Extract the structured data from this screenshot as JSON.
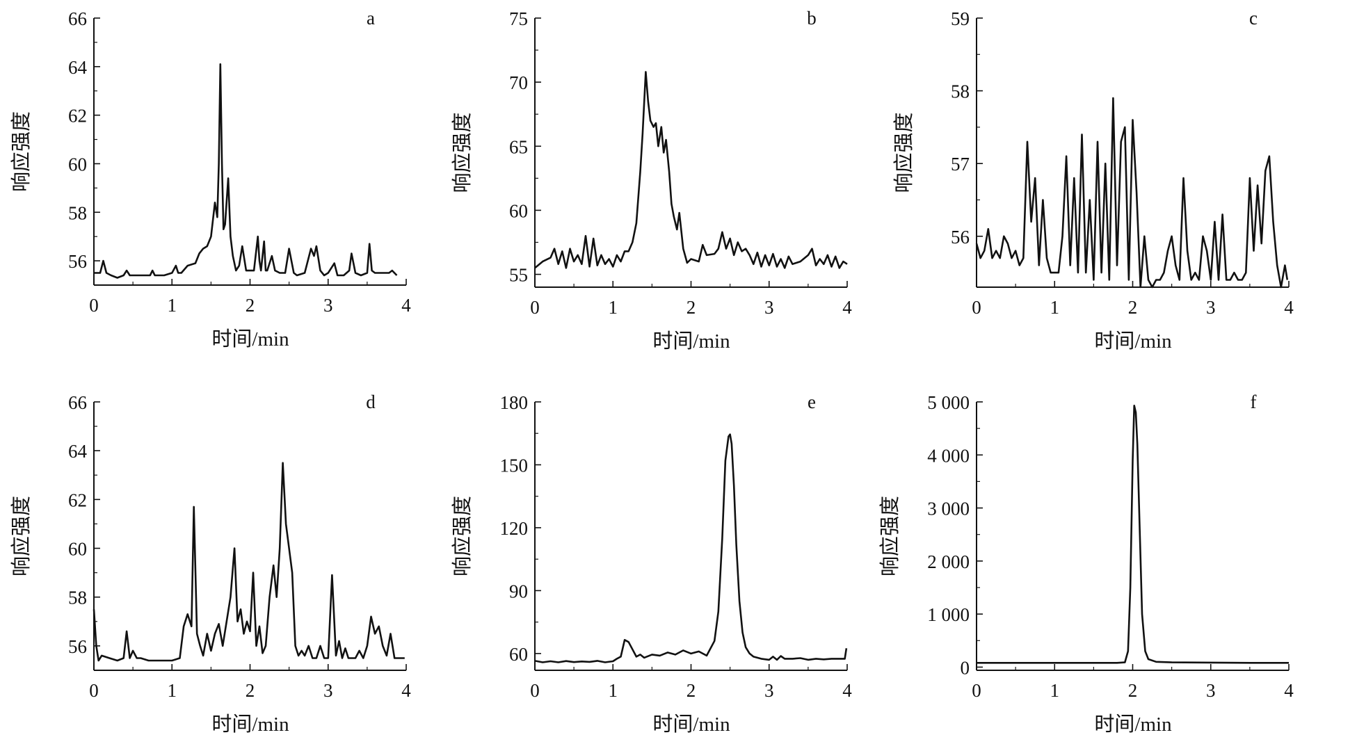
{
  "figure": {
    "xlabel": "时间/min",
    "ylabel": "响应强度",
    "line_color": "#111111"
  },
  "chart_data": [
    {
      "type": "line",
      "panel_label": "a",
      "xlabel": "时间/min",
      "ylabel": "响应强度",
      "xlim": [
        0,
        4
      ],
      "ylim": [
        55,
        66
      ],
      "xticks": [
        "0",
        "1",
        "2",
        "3",
        "4"
      ],
      "xtick_values": [
        0,
        1,
        2,
        3,
        4
      ],
      "yticks": [
        "56",
        "58",
        "60",
        "62",
        "64",
        "66"
      ],
      "ytick_values": [
        56,
        58,
        60,
        62,
        64,
        66
      ],
      "series": [
        {
          "x": [
            0,
            0.08,
            0.12,
            0.16,
            0.22,
            0.3,
            0.38,
            0.42,
            0.46,
            0.55,
            0.65,
            0.72,
            0.75,
            0.78,
            0.9,
            1.0,
            1.05,
            1.08,
            1.12,
            1.2,
            1.3,
            1.35,
            1.4,
            1.45,
            1.5,
            1.55,
            1.58,
            1.6,
            1.62,
            1.64,
            1.66,
            1.68,
            1.72,
            1.75,
            1.78,
            1.82,
            1.86,
            1.9,
            1.95,
            2.0,
            2.05,
            2.1,
            2.12,
            2.14,
            2.18,
            2.2,
            2.22,
            2.28,
            2.32,
            2.38,
            2.45,
            2.5,
            2.53,
            2.56,
            2.6,
            2.7,
            2.78,
            2.82,
            2.85,
            2.9,
            2.95,
            3.0,
            3.08,
            3.12,
            3.2,
            3.27,
            3.3,
            3.35,
            3.42,
            3.5,
            3.53,
            3.56,
            3.6,
            3.7,
            3.78,
            3.82,
            3.88
          ],
          "y": [
            55.5,
            55.5,
            56.0,
            55.5,
            55.4,
            55.3,
            55.4,
            55.6,
            55.4,
            55.4,
            55.4,
            55.4,
            55.6,
            55.4,
            55.4,
            55.5,
            55.8,
            55.5,
            55.5,
            55.8,
            55.9,
            56.3,
            56.5,
            56.6,
            57.0,
            58.4,
            57.8,
            60.0,
            64.1,
            60.0,
            57.3,
            57.5,
            59.4,
            57.0,
            56.2,
            55.6,
            55.8,
            56.6,
            55.6,
            55.6,
            55.6,
            57.0,
            56.0,
            55.6,
            56.8,
            55.6,
            55.6,
            56.2,
            55.6,
            55.5,
            55.5,
            56.5,
            56.0,
            55.5,
            55.4,
            55.5,
            56.5,
            56.2,
            56.6,
            55.6,
            55.4,
            55.5,
            55.9,
            55.4,
            55.4,
            55.6,
            56.3,
            55.5,
            55.4,
            55.5,
            56.7,
            55.6,
            55.5,
            55.5,
            55.5,
            55.6,
            55.4
          ]
        }
      ]
    },
    {
      "type": "line",
      "panel_label": "b",
      "xlabel": "时间/min",
      "ylabel": "响应强度",
      "xlim": [
        0,
        4
      ],
      "ylim": [
        54,
        75
      ],
      "xticks": [
        "0",
        "1",
        "2",
        "3",
        "4"
      ],
      "xtick_values": [
        0,
        1,
        2,
        3,
        4
      ],
      "yticks": [
        "55",
        "60",
        "65",
        "70",
        "75"
      ],
      "ytick_values": [
        55,
        60,
        65,
        70,
        75
      ],
      "series": [
        {
          "x": [
            0,
            0.1,
            0.2,
            0.25,
            0.3,
            0.35,
            0.4,
            0.45,
            0.5,
            0.55,
            0.6,
            0.65,
            0.7,
            0.75,
            0.8,
            0.85,
            0.9,
            0.95,
            1.0,
            1.05,
            1.1,
            1.15,
            1.2,
            1.25,
            1.3,
            1.35,
            1.38,
            1.42,
            1.45,
            1.48,
            1.52,
            1.55,
            1.58,
            1.62,
            1.65,
            1.68,
            1.72,
            1.75,
            1.78,
            1.82,
            1.85,
            1.9,
            1.95,
            2.0,
            2.1,
            2.15,
            2.2,
            2.3,
            2.35,
            2.4,
            2.45,
            2.5,
            2.55,
            2.6,
            2.65,
            2.7,
            2.75,
            2.8,
            2.85,
            2.9,
            2.95,
            3.0,
            3.05,
            3.1,
            3.15,
            3.2,
            3.25,
            3.3,
            3.4,
            3.5,
            3.55,
            3.6,
            3.65,
            3.7,
            3.75,
            3.8,
            3.85,
            3.9,
            3.95,
            4.0
          ],
          "y": [
            55.5,
            56.0,
            56.3,
            57.0,
            55.8,
            56.8,
            55.5,
            57.0,
            56.0,
            56.5,
            55.8,
            58.0,
            55.6,
            57.8,
            55.7,
            56.5,
            55.8,
            56.2,
            55.6,
            56.5,
            56.0,
            56.8,
            56.8,
            57.5,
            59.0,
            63.0,
            66.0,
            70.8,
            68.5,
            67.0,
            66.5,
            66.8,
            65.0,
            66.5,
            64.5,
            65.5,
            63.0,
            60.5,
            59.5,
            58.5,
            59.8,
            57.0,
            55.9,
            56.2,
            56.0,
            57.3,
            56.5,
            56.6,
            57.0,
            58.3,
            57.0,
            57.8,
            56.5,
            57.5,
            56.8,
            57.0,
            56.5,
            55.8,
            56.7,
            55.6,
            56.5,
            55.7,
            56.6,
            55.6,
            56.2,
            55.5,
            56.4,
            55.8,
            56.0,
            56.5,
            57.0,
            55.7,
            56.2,
            55.8,
            56.5,
            55.6,
            56.4,
            55.5,
            56.0,
            55.8
          ]
        }
      ]
    },
    {
      "type": "line",
      "panel_label": "c",
      "xlabel": "时间/min",
      "ylabel": "响应强度",
      "xlim": [
        0,
        4
      ],
      "ylim": [
        55.3,
        59
      ],
      "xticks": [
        "0",
        "1",
        "2",
        "3",
        "4"
      ],
      "xtick_values": [
        0,
        1,
        2,
        3,
        4
      ],
      "yticks": [
        "56",
        "57",
        "58",
        "59"
      ],
      "ytick_values": [
        56,
        57,
        58,
        59
      ],
      "series": [
        {
          "x": [
            0,
            0.05,
            0.1,
            0.15,
            0.2,
            0.25,
            0.3,
            0.35,
            0.4,
            0.45,
            0.5,
            0.55,
            0.6,
            0.65,
            0.7,
            0.75,
            0.8,
            0.85,
            0.9,
            0.95,
            1.0,
            1.05,
            1.1,
            1.15,
            1.2,
            1.25,
            1.3,
            1.35,
            1.4,
            1.45,
            1.5,
            1.55,
            1.6,
            1.65,
            1.7,
            1.75,
            1.8,
            1.85,
            1.9,
            1.95,
            2.0,
            2.05,
            2.1,
            2.15,
            2.2,
            2.25,
            2.3,
            2.35,
            2.4,
            2.45,
            2.5,
            2.55,
            2.6,
            2.65,
            2.7,
            2.75,
            2.8,
            2.85,
            2.9,
            2.95,
            3.0,
            3.05,
            3.1,
            3.15,
            3.2,
            3.25,
            3.3,
            3.35,
            3.4,
            3.45,
            3.5,
            3.55,
            3.6,
            3.65,
            3.7,
            3.75,
            3.8,
            3.85,
            3.9,
            3.95,
            3.98
          ],
          "y": [
            55.9,
            55.7,
            55.8,
            56.1,
            55.7,
            55.8,
            55.7,
            56.0,
            55.9,
            55.7,
            55.8,
            55.6,
            55.7,
            57.3,
            56.2,
            56.8,
            55.6,
            56.5,
            55.7,
            55.5,
            55.5,
            55.5,
            56.0,
            57.1,
            55.6,
            56.8,
            55.5,
            57.4,
            55.5,
            56.5,
            55.4,
            57.3,
            55.5,
            57.0,
            55.4,
            57.9,
            55.6,
            57.3,
            57.5,
            55.4,
            57.6,
            56.6,
            55.3,
            56.0,
            55.4,
            55.3,
            55.4,
            55.4,
            55.5,
            55.8,
            56.0,
            55.6,
            55.4,
            56.8,
            55.8,
            55.4,
            55.5,
            55.4,
            56.0,
            55.8,
            55.4,
            56.2,
            55.4,
            56.3,
            55.4,
            55.4,
            55.5,
            55.4,
            55.4,
            55.5,
            56.8,
            55.8,
            56.7,
            55.9,
            56.9,
            57.1,
            56.2,
            55.6,
            55.3,
            55.6,
            55.4
          ]
        }
      ]
    },
    {
      "type": "line",
      "panel_label": "d",
      "xlabel": "时间/min",
      "ylabel": "响应强度",
      "xlim": [
        0,
        4
      ],
      "ylim": [
        55,
        66
      ],
      "xticks": [
        "0",
        "1",
        "2",
        "3",
        "4"
      ],
      "xtick_values": [
        0,
        1,
        2,
        3,
        4
      ],
      "yticks": [
        "56",
        "58",
        "60",
        "62",
        "64",
        "66"
      ],
      "ytick_values": [
        56,
        58,
        60,
        62,
        64,
        66
      ],
      "series": [
        {
          "x": [
            0,
            0.03,
            0.06,
            0.1,
            0.2,
            0.3,
            0.38,
            0.42,
            0.46,
            0.5,
            0.55,
            0.6,
            0.7,
            0.8,
            0.9,
            1.0,
            1.1,
            1.15,
            1.2,
            1.25,
            1.28,
            1.32,
            1.36,
            1.4,
            1.45,
            1.5,
            1.55,
            1.6,
            1.65,
            1.7,
            1.75,
            1.8,
            1.84,
            1.88,
            1.92,
            1.96,
            2.0,
            2.04,
            2.08,
            2.12,
            2.16,
            2.2,
            2.25,
            2.3,
            2.34,
            2.38,
            2.42,
            2.46,
            2.5,
            2.54,
            2.58,
            2.62,
            2.66,
            2.7,
            2.75,
            2.8,
            2.85,
            2.9,
            2.95,
            3.0,
            3.05,
            3.1,
            3.14,
            3.18,
            3.22,
            3.26,
            3.3,
            3.35,
            3.4,
            3.45,
            3.5,
            3.55,
            3.6,
            3.65,
            3.7,
            3.75,
            3.8,
            3.85,
            3.9,
            3.95,
            3.98
          ],
          "y": [
            57.5,
            56.0,
            55.4,
            55.6,
            55.5,
            55.4,
            55.5,
            56.6,
            55.5,
            55.8,
            55.5,
            55.5,
            55.4,
            55.4,
            55.4,
            55.4,
            55.5,
            56.8,
            57.3,
            56.8,
            61.7,
            56.5,
            56.0,
            55.6,
            56.5,
            55.8,
            56.5,
            56.9,
            56.0,
            57.0,
            58.0,
            60.0,
            57.0,
            57.5,
            56.5,
            57.0,
            56.6,
            59.0,
            56.0,
            56.8,
            55.7,
            56.0,
            58.0,
            59.3,
            58.0,
            60.0,
            63.5,
            61.0,
            60.0,
            59.0,
            56.0,
            55.6,
            55.8,
            55.6,
            56.0,
            55.5,
            55.5,
            56.0,
            55.5,
            55.5,
            58.9,
            55.6,
            56.2,
            55.5,
            55.9,
            55.5,
            55.5,
            55.5,
            55.8,
            55.5,
            56.0,
            57.2,
            56.5,
            56.8,
            56.0,
            55.6,
            56.5,
            55.5,
            55.5,
            55.5,
            55.5
          ]
        }
      ]
    },
    {
      "type": "line",
      "panel_label": "e",
      "xlabel": "时间/min",
      "ylabel": "响应强度",
      "xlim": [
        0,
        4
      ],
      "ylim": [
        52,
        180
      ],
      "xticks": [
        "0",
        "1",
        "2",
        "3",
        "4"
      ],
      "xtick_values": [
        0,
        1,
        2,
        3,
        4
      ],
      "yticks": [
        "60",
        "90",
        "120",
        "150",
        "180"
      ],
      "ytick_values": [
        60,
        90,
        120,
        150,
        180
      ],
      "series": [
        {
          "x": [
            0,
            0.1,
            0.2,
            0.3,
            0.4,
            0.5,
            0.6,
            0.7,
            0.8,
            0.9,
            1.0,
            1.05,
            1.1,
            1.15,
            1.2,
            1.25,
            1.3,
            1.35,
            1.4,
            1.5,
            1.6,
            1.7,
            1.8,
            1.9,
            2.0,
            2.1,
            2.2,
            2.3,
            2.35,
            2.4,
            2.44,
            2.48,
            2.5,
            2.52,
            2.55,
            2.58,
            2.62,
            2.66,
            2.7,
            2.75,
            2.8,
            2.9,
            3.0,
            3.05,
            3.1,
            3.15,
            3.2,
            3.3,
            3.4,
            3.5,
            3.6,
            3.7,
            3.8,
            3.9,
            3.97,
            3.99
          ],
          "y": [
            56.5,
            55.8,
            56.3,
            55.8,
            56.4,
            55.9,
            56.2,
            56.0,
            56.5,
            55.8,
            56.3,
            57.5,
            58.5,
            66.5,
            65.5,
            62.0,
            58.5,
            59.5,
            58.0,
            59.5,
            59.0,
            60.5,
            59.5,
            61.5,
            60.0,
            61.0,
            59.0,
            66.0,
            80.0,
            115.0,
            152.0,
            163.5,
            164.5,
            160.0,
            140.0,
            112.0,
            85.0,
            70.0,
            63.0,
            60.0,
            58.5,
            57.5,
            57.0,
            58.5,
            57.0,
            58.8,
            57.5,
            57.5,
            57.8,
            57.0,
            57.5,
            57.2,
            57.5,
            57.5,
            57.5,
            62.5
          ]
        }
      ]
    },
    {
      "type": "line",
      "panel_label": "f",
      "xlabel": "时间/min",
      "ylabel": "响应强度",
      "xlim": [
        0,
        4
      ],
      "ylim": [
        -60,
        5000
      ],
      "xticks": [
        "0",
        "1",
        "2",
        "3",
        "4"
      ],
      "xtick_values": [
        0,
        1,
        2,
        3,
        4
      ],
      "yticks": [
        "0",
        "1 000",
        "2 000",
        "3 000",
        "4 000",
        "5 000"
      ],
      "ytick_values": [
        0,
        1000,
        2000,
        3000,
        4000,
        5000
      ],
      "series": [
        {
          "x": [
            0,
            0.5,
            1.0,
            1.5,
            1.8,
            1.9,
            1.94,
            1.97,
            2.0,
            2.02,
            2.04,
            2.06,
            2.09,
            2.12,
            2.16,
            2.2,
            2.3,
            2.5,
            3.0,
            3.5,
            4.0
          ],
          "y": [
            80,
            80,
            80,
            80,
            80,
            90,
            300,
            1500,
            3900,
            4930,
            4800,
            4200,
            2600,
            1000,
            300,
            150,
            100,
            90,
            85,
            80,
            80
          ]
        }
      ]
    }
  ]
}
